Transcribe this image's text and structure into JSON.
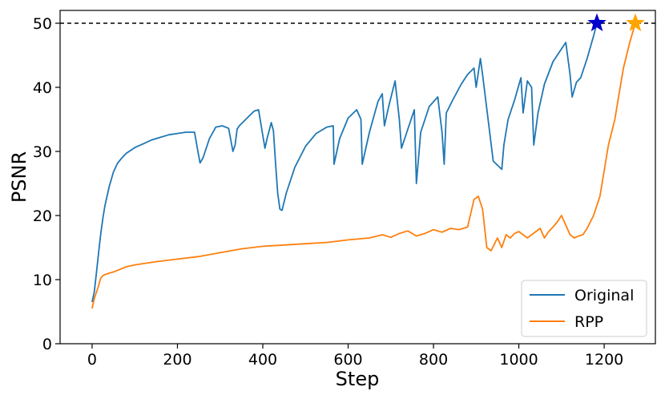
{
  "chart_data": {
    "type": "line",
    "title": "",
    "xlabel": "Step",
    "ylabel": "PSNR",
    "xlim": [
      -75,
      1320
    ],
    "ylim": [
      0,
      52
    ],
    "xticks": [
      0,
      200,
      400,
      600,
      800,
      1000,
      1200
    ],
    "yticks": [
      0,
      10,
      20,
      30,
      40,
      50
    ],
    "grid": false,
    "legend_position": "bottom-right",
    "reference_line": {
      "y": 50,
      "style": "dashed",
      "color": "#000000"
    },
    "series": [
      {
        "name": "Original",
        "color": "#1f77b4",
        "marker_end": {
          "x": 1183,
          "y": 50,
          "shape": "star",
          "color": "#0000cc"
        },
        "x": [
          0,
          5,
          10,
          15,
          20,
          25,
          30,
          40,
          50,
          60,
          70,
          80,
          100,
          120,
          140,
          160,
          180,
          200,
          220,
          240,
          248,
          253,
          260,
          275,
          290,
          305,
          320,
          330,
          335,
          340,
          345,
          360,
          380,
          390,
          400,
          405,
          410,
          420,
          425,
          430,
          435,
          440,
          445,
          455,
          475,
          500,
          525,
          550,
          565,
          567,
          580,
          600,
          620,
          630,
          633,
          650,
          670,
          680,
          685,
          695,
          710,
          720,
          725,
          740,
          755,
          760,
          770,
          790,
          810,
          820,
          825,
          830,
          845,
          865,
          880,
          895,
          900,
          910,
          915,
          940,
          960,
          965,
          975,
          990,
          1005,
          1010,
          1020,
          1030,
          1035,
          1045,
          1060,
          1080,
          1100,
          1110,
          1120,
          1125,
          1135,
          1145,
          1160,
          1175,
          1183
        ],
        "y": [
          6.5,
          8,
          11,
          14,
          17,
          19.5,
          21.5,
          24.5,
          26.8,
          28.2,
          29,
          29.7,
          30.6,
          31.2,
          31.8,
          32.2,
          32.6,
          32.8,
          33.0,
          33.0,
          30,
          28.2,
          29,
          32,
          33.8,
          34,
          33.6,
          30,
          31,
          33.5,
          34,
          35,
          36.3,
          36.5,
          32.5,
          30.5,
          32,
          34.5,
          33.2,
          28,
          23.5,
          21,
          20.8,
          23.5,
          27.5,
          30.8,
          32.8,
          33.8,
          34,
          28,
          32,
          35.2,
          36.5,
          35,
          28,
          33,
          37.8,
          39,
          34,
          37,
          41,
          35,
          30.5,
          33.5,
          36.5,
          25,
          33,
          37,
          38.5,
          33,
          28,
          36,
          38,
          40.5,
          42,
          43,
          40,
          44.5,
          42,
          28.5,
          27.2,
          31,
          35,
          38,
          41.5,
          36,
          41,
          40,
          31,
          36,
          40.5,
          44,
          46,
          47,
          42,
          38.5,
          40.8,
          41.5,
          44.5,
          48,
          50
        ]
      },
      {
        "name": "RPP",
        "color": "#ff7f0e",
        "marker_end": {
          "x": 1273,
          "y": 50,
          "shape": "star",
          "color": "#ffa500"
        },
        "x": [
          0,
          5,
          10,
          15,
          20,
          25,
          30,
          50,
          80,
          100,
          150,
          200,
          250,
          300,
          350,
          400,
          450,
          500,
          550,
          600,
          650,
          680,
          700,
          720,
          740,
          760,
          780,
          800,
          820,
          840,
          860,
          880,
          895,
          905,
          915,
          925,
          935,
          950,
          960,
          970,
          980,
          990,
          1000,
          1010,
          1020,
          1030,
          1040,
          1050,
          1060,
          1070,
          1080,
          1090,
          1100,
          1110,
          1120,
          1130,
          1140,
          1150,
          1160,
          1175,
          1190,
          1200,
          1210,
          1225,
          1235,
          1245,
          1260,
          1273
        ],
        "y": [
          5.5,
          7,
          8,
          9,
          10.2,
          10.6,
          10.8,
          11.2,
          12,
          12.3,
          12.8,
          13.2,
          13.6,
          14.2,
          14.8,
          15.2,
          15.4,
          15.6,
          15.8,
          16.2,
          16.5,
          17,
          16.6,
          17.2,
          17.6,
          16.8,
          17.2,
          17.8,
          17.4,
          18,
          17.8,
          18.2,
          22.5,
          23,
          21,
          15,
          14.5,
          16.5,
          15,
          17,
          16.5,
          17.2,
          17.5,
          17,
          16.5,
          17,
          17.5,
          18,
          16.5,
          17.5,
          18.2,
          19,
          20,
          18.5,
          17,
          16.5,
          16.8,
          17,
          18,
          20,
          23,
          27,
          31,
          35,
          39,
          43,
          47,
          50
        ]
      }
    ]
  }
}
